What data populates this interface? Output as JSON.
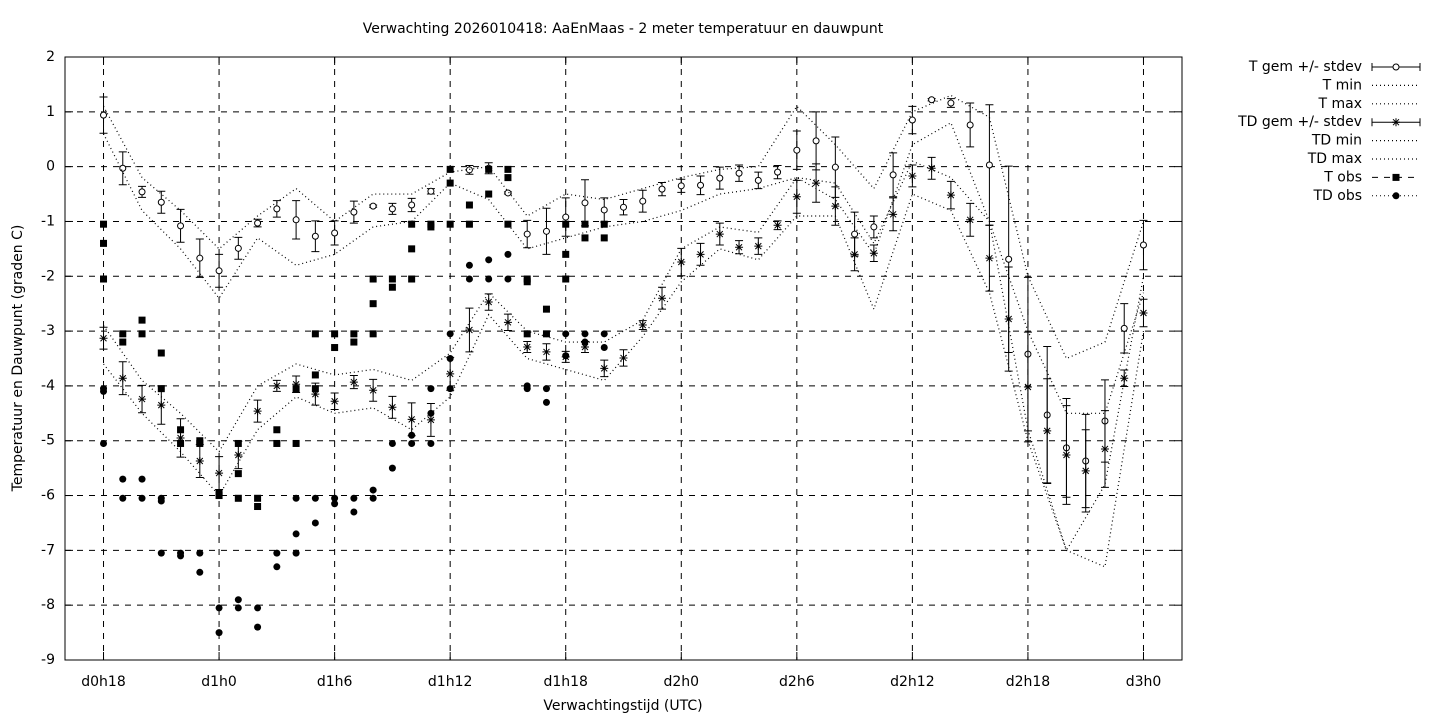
{
  "chart_data": {
    "type": "line",
    "title": "Verwachting 2026010418: AaEnMaas - 2 meter temperatuur en dauwpunt",
    "x_label": "Verwachtingstijd (UTC)",
    "y_label": "Temperatuur en Dauwpunt (graden C)",
    "xlim": [
      16,
      74
    ],
    "ylim": [
      -9,
      2
    ],
    "xticks": [
      {
        "value": 18,
        "label": "d0h18"
      },
      {
        "value": 24,
        "label": "d1h0"
      },
      {
        "value": 30,
        "label": "d1h6"
      },
      {
        "value": 36,
        "label": "d1h12"
      },
      {
        "value": 42,
        "label": "d1h18"
      },
      {
        "value": 48,
        "label": "d2h0"
      },
      {
        "value": 54,
        "label": "d2h6"
      },
      {
        "value": 60,
        "label": "d2h12"
      },
      {
        "value": 66,
        "label": "d2h18"
      },
      {
        "value": 72,
        "label": "d3h0"
      }
    ],
    "yticks": [
      -9,
      -8,
      -7,
      -6,
      -5,
      -4,
      -3,
      -2,
      -1,
      0,
      1,
      2
    ],
    "grid": true,
    "legend": "outside-right",
    "series": [
      {
        "name": "T gem +/- stdev",
        "color": "#000000",
        "marker": "circle-open",
        "line": "errorbars",
        "x": [
          18,
          19,
          20,
          21,
          22,
          23,
          24,
          25,
          26,
          27,
          28,
          29,
          30,
          31,
          32,
          33,
          34,
          35,
          36,
          37,
          38,
          39,
          40,
          41,
          42,
          43,
          44,
          45,
          46,
          47,
          48,
          49,
          50,
          51,
          52,
          53,
          54,
          55,
          56,
          57,
          58,
          59,
          60,
          61,
          62,
          63,
          64,
          65,
          66,
          67,
          68,
          69,
          70,
          71,
          72
        ],
        "values": [
          0.94,
          -0.03,
          -0.46,
          -0.65,
          -1.08,
          -1.67,
          -1.9,
          -1.49,
          -1.03,
          -0.77,
          -0.97,
          -1.27,
          -1.21,
          -0.83,
          -0.72,
          -0.77,
          -0.7,
          -0.45,
          null,
          -0.06,
          -0.03,
          -0.48,
          -1.23,
          -1.18,
          -0.92,
          -0.66,
          -0.79,
          -0.74,
          -0.63,
          -0.41,
          -0.35,
          -0.34,
          -0.21,
          -0.12,
          -0.25,
          -0.1,
          0.3,
          0.47,
          -0.01,
          -1.23,
          -1.1,
          -0.15,
          0.85,
          1.22,
          1.16,
          0.76,
          0.03,
          -1.69,
          -3.42,
          -4.53,
          -5.13,
          -5.37,
          -4.64,
          -2.95,
          -1.43
        ],
        "errors": [
          0.33,
          0.3,
          0.1,
          0.2,
          0.3,
          0.35,
          0.3,
          0.2,
          0.07,
          0.15,
          0.35,
          0.28,
          0.22,
          0.2,
          0.02,
          0.1,
          0.12,
          0.05,
          null,
          0.08,
          0.1,
          0.02,
          0.25,
          0.42,
          0.35,
          0.42,
          0.22,
          0.14,
          0.2,
          0.12,
          0.12,
          0.17,
          0.2,
          0.15,
          0.15,
          0.12,
          0.35,
          0.53,
          0.55,
          0.4,
          0.2,
          0.4,
          0.25,
          0.02,
          0.08,
          0.4,
          1.1,
          1.7,
          1.4,
          1.25,
          0.9,
          0.85,
          0.75,
          0.45,
          0.45
        ]
      },
      {
        "name": "T min",
        "color": "#000000",
        "marker": "none",
        "line": "dotted",
        "x": [
          18,
          20,
          22,
          24,
          26,
          28,
          30,
          32,
          34,
          36,
          38,
          40,
          42,
          44,
          46,
          48,
          50,
          52,
          54,
          56,
          58,
          60,
          62,
          64,
          66,
          68,
          70,
          72
        ],
        "values": [
          0.6,
          -0.8,
          -1.5,
          -2.4,
          -1.3,
          -1.8,
          -1.6,
          -1.1,
          -1.0,
          -0.3,
          -0.6,
          -1.5,
          -1.3,
          -1.1,
          -1.0,
          -0.8,
          -0.5,
          -0.4,
          -0.2,
          -0.6,
          -1.6,
          0.4,
          0.8,
          -1.0,
          -4.8,
          -7.0,
          -5.8,
          -2.0
        ]
      },
      {
        "name": "T max",
        "color": "#000000",
        "marker": "none",
        "line": "dotted",
        "x": [
          18,
          20,
          22,
          24,
          26,
          28,
          30,
          32,
          34,
          36,
          38,
          40,
          42,
          44,
          46,
          48,
          50,
          52,
          54,
          56,
          58,
          60,
          62,
          64,
          66,
          68,
          70,
          72
        ],
        "values": [
          1.1,
          -0.2,
          -0.8,
          -1.5,
          -0.9,
          -0.4,
          -1.0,
          -0.5,
          -0.5,
          -0.1,
          0.0,
          -0.9,
          -0.5,
          -0.6,
          -0.4,
          -0.2,
          -0.05,
          0.0,
          1.1,
          0.4,
          -0.4,
          1.0,
          1.3,
          0.9,
          -2.0,
          -3.5,
          -3.2,
          -1.0
        ]
      },
      {
        "name": "TD gem +/- stdev",
        "color": "#000000",
        "marker": "star",
        "line": "errorbars",
        "x": [
          18,
          19,
          20,
          21,
          22,
          23,
          24,
          25,
          26,
          27,
          28,
          29,
          30,
          31,
          32,
          33,
          34,
          35,
          36,
          37,
          38,
          39,
          40,
          41,
          42,
          43,
          44,
          45,
          46,
          47,
          48,
          49,
          50,
          51,
          52,
          53,
          54,
          55,
          56,
          57,
          58,
          59,
          60,
          61,
          62,
          63,
          64,
          65,
          66,
          67,
          68,
          69,
          70,
          71,
          72
        ],
        "values": [
          -3.13,
          -3.86,
          -4.24,
          -4.35,
          -4.95,
          -5.37,
          -5.59,
          -5.26,
          -4.46,
          -4.0,
          -3.97,
          -4.15,
          -4.28,
          -3.93,
          -4.08,
          -4.39,
          -4.61,
          -4.62,
          -3.78,
          -2.98,
          -2.47,
          -2.84,
          -3.29,
          -3.38,
          -3.47,
          -3.29,
          -3.68,
          -3.49,
          -2.89,
          -2.4,
          -1.74,
          -1.6,
          -1.23,
          -1.47,
          -1.45,
          -1.07,
          -0.55,
          -0.3,
          -0.72,
          -1.6,
          -1.58,
          -0.87,
          -0.17,
          -0.03,
          -0.52,
          -0.97,
          -1.67,
          -2.78,
          -4.02,
          -4.82,
          -5.26,
          -5.55,
          -5.15,
          -3.86,
          -2.67
        ],
        "errors": [
          0.2,
          0.3,
          0.25,
          0.35,
          0.35,
          0.3,
          0.3,
          0.25,
          0.2,
          0.1,
          0.15,
          0.2,
          0.15,
          0.12,
          0.2,
          0.2,
          0.3,
          0.3,
          0.3,
          0.4,
          0.15,
          0.15,
          0.1,
          0.15,
          0.1,
          0.1,
          0.15,
          0.15,
          0.08,
          0.2,
          0.25,
          0.2,
          0.2,
          0.12,
          0.15,
          0.08,
          0.3,
          0.35,
          0.35,
          0.3,
          0.15,
          0.3,
          0.2,
          0.2,
          0.25,
          0.3,
          0.6,
          0.95,
          1.0,
          0.95,
          0.9,
          0.75,
          0.7,
          0.15,
          0.25
        ]
      },
      {
        "name": "TD min",
        "color": "#000000",
        "marker": "none",
        "line": "dotted",
        "x": [
          18,
          20,
          22,
          24,
          26,
          28,
          30,
          32,
          34,
          36,
          38,
          40,
          42,
          44,
          46,
          48,
          50,
          52,
          54,
          56,
          58,
          60,
          62,
          64,
          66,
          68,
          70,
          72
        ],
        "values": [
          -3.6,
          -4.5,
          -5.2,
          -6.0,
          -4.8,
          -4.2,
          -4.5,
          -4.4,
          -4.8,
          -4.2,
          -2.7,
          -3.5,
          -3.7,
          -3.9,
          -3.1,
          -2.1,
          -1.5,
          -1.7,
          -0.9,
          -0.9,
          -2.6,
          -0.5,
          -0.8,
          -2.3,
          -5.0,
          -7.0,
          -7.3,
          -3.0
        ]
      },
      {
        "name": "TD max",
        "color": "#000000",
        "marker": "none",
        "line": "dotted",
        "x": [
          18,
          20,
          22,
          24,
          26,
          28,
          30,
          32,
          34,
          36,
          38,
          40,
          42,
          44,
          46,
          48,
          50,
          52,
          54,
          56,
          58,
          60,
          62,
          64,
          66,
          68,
          70,
          72
        ],
        "values": [
          -2.9,
          -3.9,
          -4.5,
          -5.2,
          -4.0,
          -3.6,
          -3.8,
          -3.7,
          -3.9,
          -3.4,
          -2.3,
          -3.0,
          -3.2,
          -3.2,
          -2.8,
          -1.5,
          -1.1,
          -1.2,
          -0.2,
          -0.3,
          -1.4,
          0.1,
          -0.2,
          -1.0,
          -3.0,
          -4.5,
          -4.5,
          -2.3
        ]
      },
      {
        "name": "T obs",
        "color": "#000000",
        "marker": "square",
        "line": "none",
        "x": [
          18,
          18,
          18,
          19,
          19,
          20,
          20,
          21,
          21,
          22,
          22,
          23,
          23,
          24,
          24,
          25,
          25,
          25,
          26,
          26,
          27,
          27,
          28,
          28,
          29,
          29,
          29,
          30,
          30,
          31,
          31,
          32,
          32,
          32,
          33,
          33,
          34,
          34,
          34,
          35,
          35,
          36,
          36,
          36,
          37,
          37,
          38,
          38,
          39,
          39,
          39,
          40,
          40,
          40,
          41,
          41,
          42,
          42,
          42,
          43,
          43,
          44,
          44
        ],
        "values": [
          -1.05,
          -1.4,
          -2.05,
          -3.05,
          -3.2,
          -2.8,
          -3.05,
          -3.4,
          -4.05,
          -4.8,
          -5.05,
          -5.0,
          -5.05,
          -5.95,
          -6.0,
          -5.05,
          -5.6,
          -6.05,
          -6.05,
          -6.2,
          -4.8,
          -5.05,
          -4.05,
          -5.05,
          -3.05,
          -3.8,
          -4.05,
          -3.05,
          -3.3,
          -3.05,
          -3.2,
          -2.05,
          -2.5,
          -3.05,
          -2.05,
          -2.2,
          -1.05,
          -1.5,
          -2.05,
          -1.05,
          -1.1,
          -0.05,
          -0.3,
          -1.05,
          -0.7,
          -1.05,
          -0.05,
          -0.5,
          -0.05,
          -0.2,
          -1.05,
          -2.05,
          -2.1,
          -3.05,
          -2.6,
          -3.05,
          -1.05,
          -1.6,
          -2.05,
          -1.05,
          -1.3,
          -1.05,
          -1.3
        ]
      },
      {
        "name": "TD obs",
        "color": "#000000",
        "marker": "dot",
        "line": "none",
        "x": [
          18,
          18,
          18,
          19,
          19,
          20,
          20,
          21,
          21,
          21,
          22,
          22,
          23,
          23,
          24,
          24,
          25,
          25,
          26,
          26,
          27,
          27,
          28,
          28,
          28,
          29,
          29,
          30,
          30,
          31,
          31,
          32,
          32,
          33,
          33,
          34,
          34,
          35,
          35,
          35,
          36,
          36,
          36,
          37,
          37,
          38,
          38,
          39,
          39,
          40,
          40,
          41,
          41,
          42,
          42,
          43,
          43,
          44,
          44
        ],
        "values": [
          -4.05,
          -4.1,
          -5.05,
          -5.7,
          -6.05,
          -5.7,
          -6.05,
          -6.05,
          -6.1,
          -7.05,
          -7.05,
          -7.1,
          -7.05,
          -7.4,
          -8.05,
          -8.5,
          -7.9,
          -8.05,
          -8.05,
          -8.4,
          -7.05,
          -7.3,
          -6.05,
          -6.7,
          -7.05,
          -6.05,
          -6.5,
          -6.05,
          -6.15,
          -6.05,
          -6.3,
          -5.9,
          -6.05,
          -5.05,
          -5.5,
          -4.9,
          -5.05,
          -4.05,
          -4.5,
          -5.05,
          -3.05,
          -3.5,
          -4.05,
          -1.8,
          -2.05,
          -1.7,
          -2.05,
          -1.6,
          -2.05,
          -4.0,
          -4.05,
          -4.05,
          -4.3,
          -3.05,
          -3.45,
          -3.05,
          -3.2,
          -3.05,
          -3.3
        ]
      }
    ]
  }
}
